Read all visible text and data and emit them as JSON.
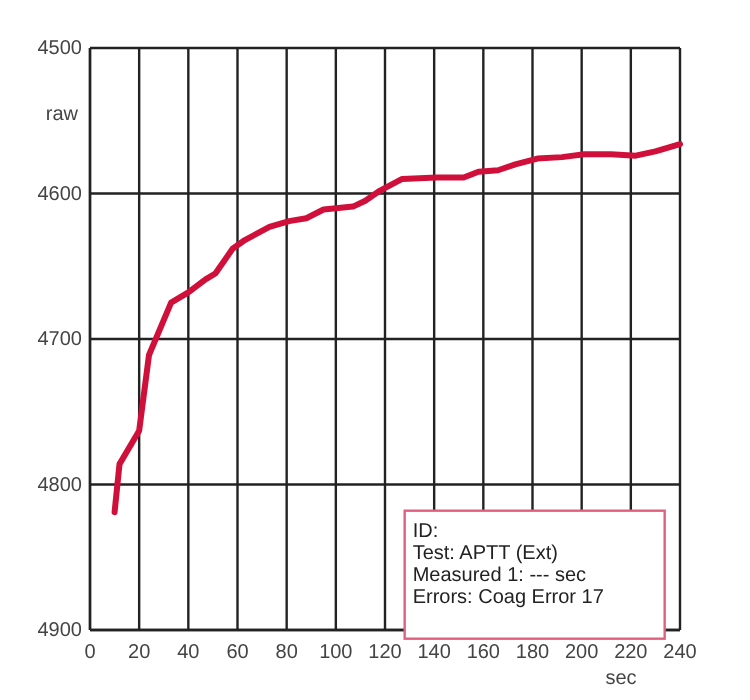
{
  "chart_data": {
    "type": "line",
    "xlabel": "sec",
    "ylabel": "raw",
    "x": [
      10,
      12,
      20,
      24,
      33,
      40,
      47,
      51,
      58,
      63,
      73,
      81,
      88,
      95,
      107,
      112,
      118,
      127,
      141,
      152,
      158,
      166,
      173,
      182,
      192,
      201,
      212,
      222,
      230,
      240
    ],
    "series": [
      {
        "color": "#d0103a",
        "values": [
          4819,
          4786,
          4763,
          4711,
          4675,
          4668,
          4659,
          4655,
          4638,
          4632,
          4623,
          4619,
          4617,
          4611,
          4609,
          4605,
          4598,
          4590,
          4589,
          4589,
          4585,
          4584,
          4580,
          4576,
          4575,
          4573,
          4573,
          4574,
          4571,
          4566
        ]
      }
    ],
    "xlim": [
      0,
      240
    ],
    "xticks": [
      0,
      20,
      40,
      60,
      80,
      100,
      120,
      140,
      160,
      180,
      200,
      220,
      240
    ],
    "ylim": [
      4900,
      4500
    ],
    "yticks": [
      4500,
      4600,
      4700,
      4800,
      4900
    ],
    "grid": true,
    "marker": "none",
    "line_style": "solid",
    "annotations": [
      "ID:",
      "Test: APTT (Ext)",
      "Measured 1: --- sec",
      "Errors: Coag Error 17"
    ]
  }
}
